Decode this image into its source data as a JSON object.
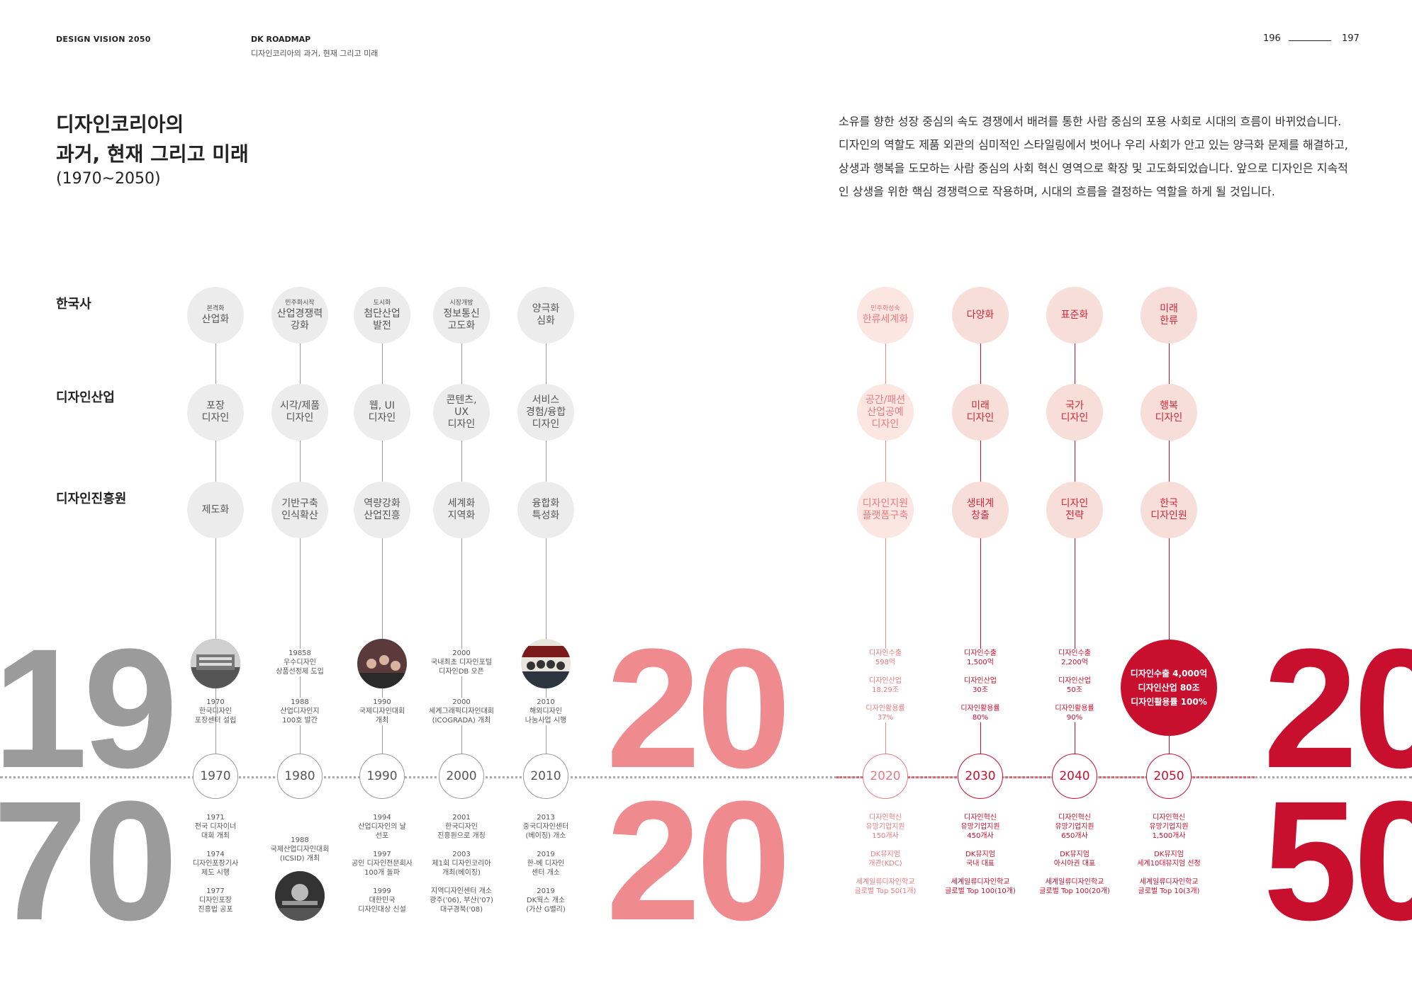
{
  "header": {
    "left": "DESIGN VISION 2050",
    "section": "DK ROADMAP",
    "section_sub": "디자인코리아의 과거, 현재 그리고 미래",
    "page_left": "196",
    "page_right": "197"
  },
  "title": {
    "line1": "디자인코리아의",
    "line2": "과거, 현재 그리고 미래",
    "period": "(1970~2050)"
  },
  "intro": "소유를 향한 성장 중심의 속도 경쟁에서 배려를 통한 사람 중심의 포용 사회로 시대의 흐름이 바뀌었습니다. 디자인의 역할도 제품 외관의 심미적인 스타일링에서 벗어나 우리 사회가 안고 있는 양극화 문제를 해결하고, 상생과 행복을 도모하는 사람 중심의 사회 혁신 영역으로 확장 및  고도화되었습니다. 앞으로 디자인은 지속적인 상생을 위한 핵심 경쟁력으로 작용하며, 시대의 흐름을 결정하는 역할을 하게 될 것입니다.",
  "row_labels": [
    "한국사",
    "디자인산업",
    "디자인진흥원"
  ],
  "big_years": {
    "y1970_top": "19",
    "y1970_bottom": "70",
    "y2020_top": "20",
    "y2020_bottom": "20",
    "y2050_top": "20",
    "y2050_bottom": "50"
  },
  "columns": [
    {
      "year": "1970",
      "tone": "gray",
      "history_small": "본격화",
      "history": "산업화",
      "industry": "포장\n디자인",
      "kidp": "제도화",
      "above": "1970\n한국디자인\n포장센터 설립",
      "below": "1971\n전국 디자이너\n대회 개최\n\n1974\n디자인포장기사\n제도 시행\n\n1977\n디자인포장\n진흥법 공포",
      "photo": "above"
    },
    {
      "year": "1980",
      "tone": "gray",
      "history_small": "민주화시작",
      "history": "산업경쟁력\n강화",
      "industry": "시각/제품\n디자인",
      "kidp": "기반구축\n인식확산",
      "above_top": "19858\n우수디자인\n상품선정제 도입",
      "above": "1988\n산업디자인지\n100호 발간",
      "below": "1988\n국제산업디자인대회\n(ICSID) 개최",
      "photo": "below"
    },
    {
      "year": "1990",
      "tone": "gray",
      "history_small": "도시화",
      "history": "첨단산업\n발전",
      "industry": "웹, UI\n디자인",
      "kidp": "역량강화\n산업진흥",
      "above": "1990\n국제디자인대회\n개최",
      "below": "1994\n산업디자인의 날\n선포\n\n1997\n공인 디자인전문회사\n100개 돌파\n\n1999\n대한민국\n디자인대상 신설",
      "photo": "above"
    },
    {
      "year": "2000",
      "tone": "gray",
      "history_small": "시장개방",
      "history": "정보통신\n고도화",
      "industry": "콘텐츠,\nUX\n디자인",
      "kidp": "세계화\n지역화",
      "above_top": "2000\n국내최초 디자인포털\n디자인DB 오픈",
      "above": "2000\n세계그래픽디자인대회\n(ICOGRADA) 개최",
      "below": "2001\n한국디자인\n진흥원으로 개칭\n\n2003\n제1회 디자인코리아\n개최(베이징)\n\n지역디자인센터 개소\n광주('06), 부산('07)\n대구경북('08)",
      "photo": "none"
    },
    {
      "year": "2010",
      "tone": "gray",
      "history_small": "",
      "history": "양극화\n심화",
      "industry": "서비스\n경험/융합\n디자인",
      "kidp": "융합화\n특성화",
      "above": "2010\n해외디자인\n나눔사업 시행",
      "below": "2013\n중국디자인센터\n(베이징) 개소\n\n2019\n한-베 디자인\n센터 개소\n\n2019\nDK웍스 개소\n(가산 G밸리)",
      "photo": "above"
    },
    {
      "year": "2020",
      "tone": "lpink",
      "history_small": "민주화성숙",
      "history": "한류세계화",
      "industry": "공간/패션\n산업공예\n디자인",
      "kidp": "디자인지원\n플랫폼구축",
      "above": "디자인수출\n598억\n\n디자인산업\n18.29조\n\n디자인활용률\n37%",
      "below": "디자인혁신\n유망기업지원\n150개사\n\nDK뮤지엄\n개관(KDC)\n\n세계일류디자인학교\n글로벌 Top 50(1개)",
      "photo": "none"
    },
    {
      "year": "2030",
      "tone": "pink",
      "history_small": "",
      "history": "다양화",
      "industry": "미래\n디자인",
      "kidp": "생태계\n창출",
      "above": "디자인수출\n1,500억\n\n디자인산업\n30조\n\n디자인활용률\n80%",
      "below": "디자인혁신\n유망기업지원\n450개사\n\nDK뮤지엄\n국내 대표\n\n세계일류디자인학교\n글로벌 Top 100(10개)",
      "photo": "none"
    },
    {
      "year": "2040",
      "tone": "pink",
      "history_small": "",
      "history": "표준화",
      "industry": "국가\n디자인",
      "kidp": "디자인\n전략",
      "above": "디자인수출\n2,200억\n\n디자인산업\n50조\n\n디자인활용률\n90%",
      "below": "디자인혁신\n유망기업지원\n650개사\n\nDK뮤지엄\n아시아권 대표\n\n세계일류디자인학교\n글로벌 Top 100(20개)",
      "photo": "none"
    },
    {
      "year": "2050",
      "tone": "pink",
      "history_small": "",
      "history": "미래\n한류",
      "industry": "행복\n디자인",
      "kidp": "한국\n디자인원",
      "above_big": [
        "디자인수출 4,000억",
        "디자인산업 80조",
        "디자인활용률 100%"
      ],
      "below": "디자인혁신\n유망기업지원\n1,500개사\n\nDK뮤지엄\n세계10대뮤지엄 선정\n\n세계일류디자인학교\n글로벌 Top 10(3개)",
      "photo": "none"
    }
  ],
  "colors": {
    "gray": "#9a9a9a",
    "light_pink": "#ef8a8f",
    "red": "#c8102e"
  }
}
